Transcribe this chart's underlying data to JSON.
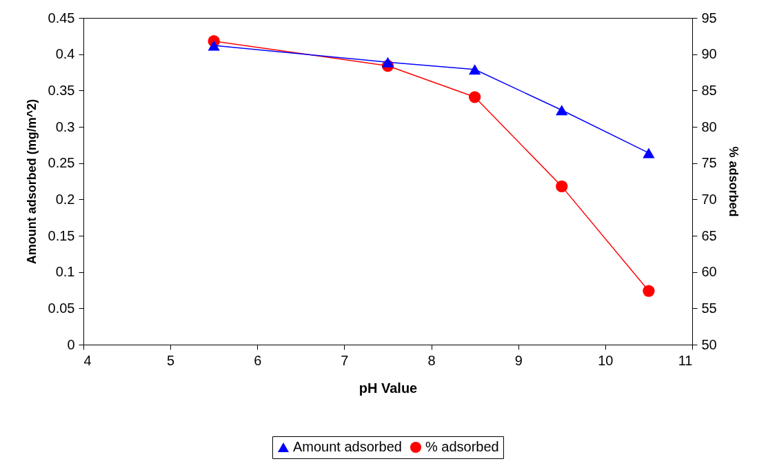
{
  "chart_data": {
    "type": "line",
    "xlabel": "pH Value",
    "ylabel": "Amount adsorbed  (mg/m^2)",
    "y2label": "% adsorbed",
    "x": [
      5.5,
      7.5,
      8.5,
      9.5,
      10.5
    ],
    "series": [
      {
        "name": "Amount adsorbed",
        "color": "#0000ff",
        "marker": "triangle",
        "values": [
          0.412,
          0.389,
          0.379,
          0.323,
          0.264
        ]
      },
      {
        "name": "% adsorbed",
        "color": "#ff0000",
        "marker": "circle",
        "axis": "y2",
        "values": [
          91.8,
          88.4,
          84.1,
          71.8,
          57.4
        ]
      }
    ],
    "xlim": [
      4,
      11
    ],
    "xticks": [
      4,
      5,
      6,
      7,
      8,
      9,
      10,
      11
    ],
    "ylim": [
      0,
      0.45
    ],
    "yticks": [
      0,
      0.05,
      0.1,
      0.15,
      0.2,
      0.25,
      0.3,
      0.35,
      0.4,
      0.45
    ],
    "y2lim": [
      50,
      95
    ],
    "y2ticks": [
      50,
      55,
      60,
      65,
      70,
      75,
      80,
      85,
      90,
      95
    ],
    "grid": false,
    "legend": "bottom",
    "line_style": "solid"
  }
}
